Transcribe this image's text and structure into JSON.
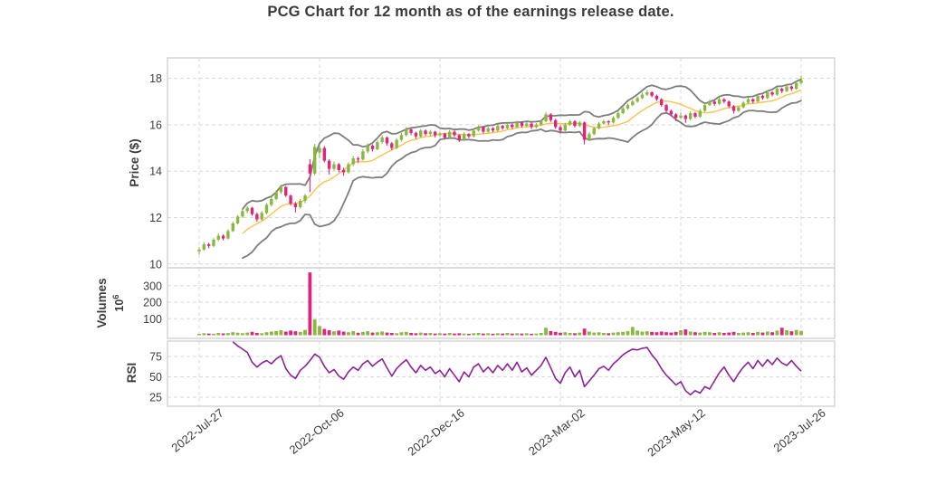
{
  "title": "PCG Chart for 12 month as of the earnings release date.",
  "chart_data": {
    "type": "candlestick",
    "description": "12-month daily candlestick chart with Bollinger Bands (20-period, 2 std) and middle SMA overlay, volume sub-panel and RSI sub-panel. Data stored as 2-day bars.",
    "x_tick_labels": [
      "2022-Jul-27",
      "2022-Oct-06",
      "2022-Dec-16",
      "2023-Mar-02",
      "2023-May-12",
      "2023-Jul-26"
    ],
    "x_tick_indices": [
      0,
      25,
      50,
      75,
      100,
      125
    ],
    "panels": {
      "price": {
        "ylabel": "Price ($)",
        "ticks": [
          10,
          12,
          14,
          16,
          18
        ],
        "ylim": [
          9.5,
          18.9
        ]
      },
      "volume": {
        "ylabel": "Volumes",
        "scale_base": "10",
        "scale_exp": "6",
        "ticks": [
          100,
          200,
          300
        ],
        "ylim": [
          0,
          400
        ]
      },
      "rsi": {
        "ylabel": "RSI",
        "ticks": [
          25,
          50,
          75
        ],
        "ylim": [
          20,
          95
        ]
      }
    },
    "overlays": {
      "bollinger_window": 10,
      "bollinger_mult": 2,
      "middle_line": "SMA"
    },
    "candles": [
      [
        10.55,
        10.72,
        10.42,
        10.62
      ],
      [
        10.62,
        10.95,
        10.58,
        10.85
      ],
      [
        10.85,
        10.92,
        10.68,
        10.78
      ],
      [
        10.78,
        11.12,
        10.72,
        11.05
      ],
      [
        11.05,
        11.32,
        10.98,
        11.22
      ],
      [
        11.22,
        11.28,
        11.02,
        11.1
      ],
      [
        11.1,
        11.5,
        11.06,
        11.42
      ],
      [
        11.42,
        11.82,
        11.38,
        11.75
      ],
      [
        11.75,
        12.12,
        11.7,
        12.05
      ],
      [
        12.05,
        12.36,
        11.98,
        12.28
      ],
      [
        12.28,
        12.5,
        12.18,
        12.42
      ],
      [
        12.42,
        12.46,
        12.08,
        12.15
      ],
      [
        12.15,
        12.22,
        11.82,
        11.92
      ],
      [
        11.92,
        12.28,
        11.86,
        12.2
      ],
      [
        12.2,
        12.62,
        12.14,
        12.55
      ],
      [
        12.55,
        12.88,
        12.48,
        12.8
      ],
      [
        12.8,
        13.18,
        12.74,
        13.1
      ],
      [
        13.1,
        13.42,
        13.02,
        13.32
      ],
      [
        13.32,
        13.36,
        12.88,
        12.95
      ],
      [
        12.95,
        13.0,
        12.52,
        12.6
      ],
      [
        12.6,
        12.68,
        12.22,
        12.45
      ],
      [
        12.45,
        12.8,
        12.38,
        12.72
      ],
      [
        12.72,
        13.02,
        12.62,
        12.95
      ],
      [
        14.3,
        14.52,
        13.1,
        13.9
      ],
      [
        13.9,
        15.18,
        13.82,
        15.05
      ],
      [
        14.8,
        15.12,
        14.55,
        15.0
      ],
      [
        15.0,
        15.08,
        14.38,
        14.45
      ],
      [
        14.45,
        14.52,
        13.86,
        14.1
      ],
      [
        14.1,
        14.42,
        14.02,
        14.3
      ],
      [
        14.3,
        14.35,
        13.95,
        14.05
      ],
      [
        14.05,
        14.15,
        13.8,
        13.95
      ],
      [
        13.95,
        14.38,
        13.9,
        14.3
      ],
      [
        14.3,
        14.65,
        14.22,
        14.55
      ],
      [
        14.55,
        14.62,
        14.35,
        14.5
      ],
      [
        14.5,
        14.95,
        14.45,
        14.85
      ],
      [
        14.85,
        15.2,
        14.78,
        15.1
      ],
      [
        15.1,
        15.16,
        14.85,
        14.95
      ],
      [
        14.95,
        15.32,
        14.9,
        15.25
      ],
      [
        15.25,
        15.55,
        15.18,
        15.45
      ],
      [
        15.45,
        15.5,
        15.1,
        15.2
      ],
      [
        15.2,
        15.26,
        14.9,
        15.0
      ],
      [
        15.0,
        15.42,
        14.95,
        15.35
      ],
      [
        15.35,
        15.65,
        15.28,
        15.55
      ],
      [
        15.55,
        15.9,
        15.5,
        15.8
      ],
      [
        15.8,
        15.85,
        15.55,
        15.65
      ],
      [
        15.65,
        15.7,
        15.4,
        15.5
      ],
      [
        15.5,
        15.82,
        15.45,
        15.75
      ],
      [
        15.75,
        15.8,
        15.52,
        15.6
      ],
      [
        15.6,
        15.78,
        15.52,
        15.7
      ],
      [
        15.7,
        15.74,
        15.45,
        15.55
      ],
      [
        15.55,
        15.7,
        15.48,
        15.62
      ],
      [
        15.62,
        15.66,
        15.36,
        15.45
      ],
      [
        15.45,
        15.78,
        15.4,
        15.7
      ],
      [
        15.7,
        15.75,
        15.48,
        15.55
      ],
      [
        15.55,
        15.6,
        15.26,
        15.35
      ],
      [
        15.35,
        15.68,
        15.3,
        15.6
      ],
      [
        15.6,
        15.64,
        15.42,
        15.5
      ],
      [
        15.5,
        15.82,
        15.45,
        15.75
      ],
      [
        15.75,
        15.98,
        15.7,
        15.9
      ],
      [
        15.9,
        15.94,
        15.62,
        15.7
      ],
      [
        15.7,
        15.92,
        15.65,
        15.85
      ],
      [
        15.85,
        15.9,
        15.68,
        15.75
      ],
      [
        15.75,
        16.02,
        15.7,
        15.95
      ],
      [
        15.95,
        16.0,
        15.78,
        15.85
      ],
      [
        15.85,
        16.08,
        15.8,
        16.0
      ],
      [
        16.0,
        16.05,
        15.82,
        15.9
      ],
      [
        15.9,
        16.18,
        15.85,
        16.1
      ],
      [
        16.1,
        16.15,
        15.88,
        15.95
      ],
      [
        15.95,
        16.12,
        15.9,
        16.05
      ],
      [
        16.05,
        16.1,
        15.82,
        15.9
      ],
      [
        15.9,
        16.08,
        15.85,
        16.0
      ],
      [
        16.0,
        16.22,
        15.95,
        16.15
      ],
      [
        16.15,
        16.55,
        16.1,
        16.45
      ],
      [
        16.45,
        16.5,
        16.12,
        16.2
      ],
      [
        16.2,
        16.26,
        15.82,
        15.9
      ],
      [
        15.9,
        15.98,
        15.62,
        15.75
      ],
      [
        15.75,
        16.08,
        15.7,
        16.0
      ],
      [
        16.0,
        16.22,
        15.95,
        16.15
      ],
      [
        16.15,
        16.2,
        15.88,
        15.95
      ],
      [
        15.95,
        16.16,
        15.9,
        16.1
      ],
      [
        16.1,
        16.14,
        15.16,
        15.35
      ],
      [
        15.35,
        15.68,
        15.3,
        15.6
      ],
      [
        15.6,
        15.92,
        15.55,
        15.85
      ],
      [
        15.85,
        16.12,
        15.8,
        16.05
      ],
      [
        16.05,
        16.22,
        16.0,
        16.15
      ],
      [
        16.15,
        16.2,
        15.98,
        16.1
      ],
      [
        16.1,
        16.38,
        16.05,
        16.3
      ],
      [
        16.3,
        16.58,
        16.25,
        16.5
      ],
      [
        16.5,
        16.78,
        16.45,
        16.7
      ],
      [
        16.7,
        16.92,
        16.64,
        16.85
      ],
      [
        16.85,
        17.08,
        16.8,
        17.0
      ],
      [
        17.0,
        17.22,
        16.95,
        17.15
      ],
      [
        17.15,
        17.38,
        17.1,
        17.3
      ],
      [
        17.3,
        17.5,
        17.24,
        17.4
      ],
      [
        17.4,
        17.45,
        17.18,
        17.25
      ],
      [
        17.25,
        17.3,
        17.02,
        17.1
      ],
      [
        17.1,
        17.15,
        16.78,
        16.85
      ],
      [
        16.85,
        16.9,
        16.52,
        16.6
      ],
      [
        16.6,
        16.66,
        16.36,
        16.45
      ],
      [
        16.45,
        16.5,
        16.15,
        16.3
      ],
      [
        16.3,
        16.52,
        16.24,
        16.4
      ],
      [
        16.4,
        16.44,
        16.08,
        16.25
      ],
      [
        16.25,
        16.58,
        16.2,
        16.5
      ],
      [
        16.5,
        16.55,
        16.28,
        16.35
      ],
      [
        16.35,
        16.68,
        16.3,
        16.6
      ],
      [
        16.6,
        16.92,
        16.55,
        16.85
      ],
      [
        16.85,
        17.08,
        16.8,
        17.0
      ],
      [
        17.0,
        17.05,
        16.82,
        16.9
      ],
      [
        16.9,
        17.18,
        16.85,
        17.1
      ],
      [
        17.1,
        17.15,
        16.92,
        17.0
      ],
      [
        17.0,
        17.05,
        16.72,
        16.8
      ],
      [
        16.8,
        16.85,
        16.48,
        16.6
      ],
      [
        16.6,
        16.82,
        16.55,
        16.75
      ],
      [
        16.75,
        17.02,
        16.7,
        16.95
      ],
      [
        16.95,
        17.18,
        16.9,
        17.1
      ],
      [
        17.1,
        17.15,
        16.92,
        17.0
      ],
      [
        17.0,
        17.32,
        16.95,
        17.25
      ],
      [
        17.25,
        17.3,
        17.08,
        17.15
      ],
      [
        17.15,
        17.48,
        17.1,
        17.4
      ],
      [
        17.4,
        17.45,
        17.22,
        17.3
      ],
      [
        17.3,
        17.62,
        17.25,
        17.55
      ],
      [
        17.55,
        17.6,
        17.36,
        17.45
      ],
      [
        17.45,
        17.72,
        17.4,
        17.65
      ],
      [
        17.65,
        17.7,
        17.46,
        17.55
      ],
      [
        17.55,
        17.88,
        17.5,
        17.8
      ],
      [
        17.8,
        18.12,
        17.74,
        17.92
      ]
    ],
    "volumes_millions": [
      8,
      12,
      10,
      9,
      14,
      11,
      13,
      18,
      15,
      12,
      16,
      20,
      14,
      12,
      18,
      22,
      25,
      30,
      22,
      28,
      24,
      20,
      32,
      380,
      95,
      55,
      38,
      30,
      24,
      28,
      22,
      18,
      25,
      15,
      20,
      24,
      16,
      18,
      22,
      16,
      14,
      12,
      18,
      20,
      14,
      12,
      16,
      12,
      14,
      10,
      12,
      10,
      14,
      10,
      12,
      10,
      8,
      12,
      14,
      10,
      12,
      9,
      12,
      10,
      14,
      10,
      12,
      10,
      12,
      8,
      10,
      14,
      45,
      25,
      20,
      15,
      18,
      14,
      12,
      16,
      40,
      22,
      16,
      18,
      14,
      12,
      16,
      18,
      20,
      24,
      50,
      28,
      22,
      24,
      20,
      18,
      22,
      18,
      16,
      20,
      30,
      35,
      22,
      18,
      16,
      20,
      18,
      14,
      18,
      14,
      16,
      20,
      14,
      16,
      18,
      14,
      20,
      16,
      22,
      18,
      28,
      45,
      30,
      24,
      32,
      26
    ],
    "rsi": [
      null,
      null,
      null,
      null,
      null,
      null,
      null,
      93,
      88,
      84,
      80,
      68,
      62,
      67,
      70,
      66,
      72,
      76,
      60,
      52,
      48,
      58,
      63,
      70,
      78,
      74,
      63,
      55,
      59,
      51,
      47,
      56,
      62,
      58,
      66,
      70,
      63,
      68,
      72,
      61,
      51,
      60,
      66,
      71,
      62,
      55,
      64,
      58,
      62,
      54,
      58,
      50,
      60,
      52,
      44,
      56,
      50,
      62,
      66,
      56,
      62,
      55,
      64,
      58,
      66,
      58,
      68,
      56,
      61,
      52,
      58,
      64,
      74,
      61,
      48,
      42,
      55,
      62,
      50,
      58,
      38,
      45,
      52,
      60,
      63,
      58,
      66,
      71,
      77,
      81,
      84,
      83,
      85,
      86,
      77,
      70,
      60,
      52,
      46,
      40,
      44,
      33,
      28,
      33,
      30,
      38,
      35,
      45,
      55,
      62,
      52,
      44,
      54,
      62,
      68,
      60,
      70,
      63,
      71,
      65,
      73,
      67,
      64,
      70,
      63,
      57
    ],
    "colors": {
      "up": "#8ab73d",
      "down": "#e0247e",
      "band": "#7d7d7d",
      "sma": "#fbc34b",
      "rsi": "#8d2199",
      "grid": "#d8d8d8",
      "spine": "#cccccc",
      "text": "#3d3d3d"
    }
  }
}
